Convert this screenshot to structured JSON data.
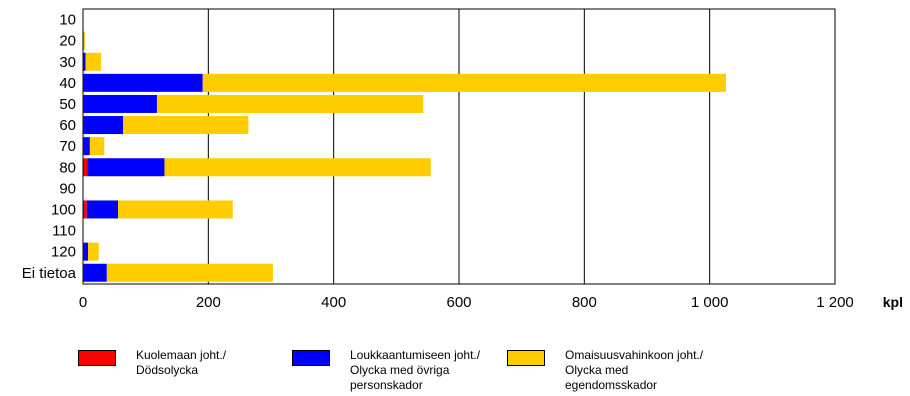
{
  "chart_data": {
    "type": "bar",
    "orientation": "horizontal",
    "stacked": true,
    "categories": [
      "10",
      "20",
      "30",
      "40",
      "50",
      "60",
      "70",
      "80",
      "90",
      "100",
      "110",
      "120",
      "Ei tietoa"
    ],
    "series": [
      {
        "name_lines": [
          "Kuolemaan joht./",
          "Dödsolycka"
        ],
        "color": "#ff0000",
        "values": [
          0,
          0,
          0,
          1,
          1,
          1,
          1,
          7,
          0,
          6,
          0,
          1,
          1
        ]
      },
      {
        "name_lines": [
          "Loukkaantumiseen joht./",
          "Olycka med övriga",
          "personskador"
        ],
        "color": "#0000ff",
        "values": [
          0,
          1,
          4,
          190,
          117,
          63,
          10,
          123,
          0,
          50,
          0,
          7,
          37
        ]
      },
      {
        "name_lines": [
          "Omaisuusvahinkoon joht./",
          "Olycka med",
          "egendomsskador"
        ],
        "color": "#ffcc00",
        "values": [
          0,
          2,
          25,
          835,
          425,
          200,
          23,
          425,
          0,
          183,
          0,
          17,
          265
        ]
      }
    ],
    "xlim": [
      0,
      1200
    ],
    "x_ticks": [
      "0",
      "200",
      "400",
      "600",
      "800",
      "1 000",
      "1 200"
    ],
    "x_unit": "kpl",
    "grid": "vertical",
    "legend_position": "bottom"
  }
}
